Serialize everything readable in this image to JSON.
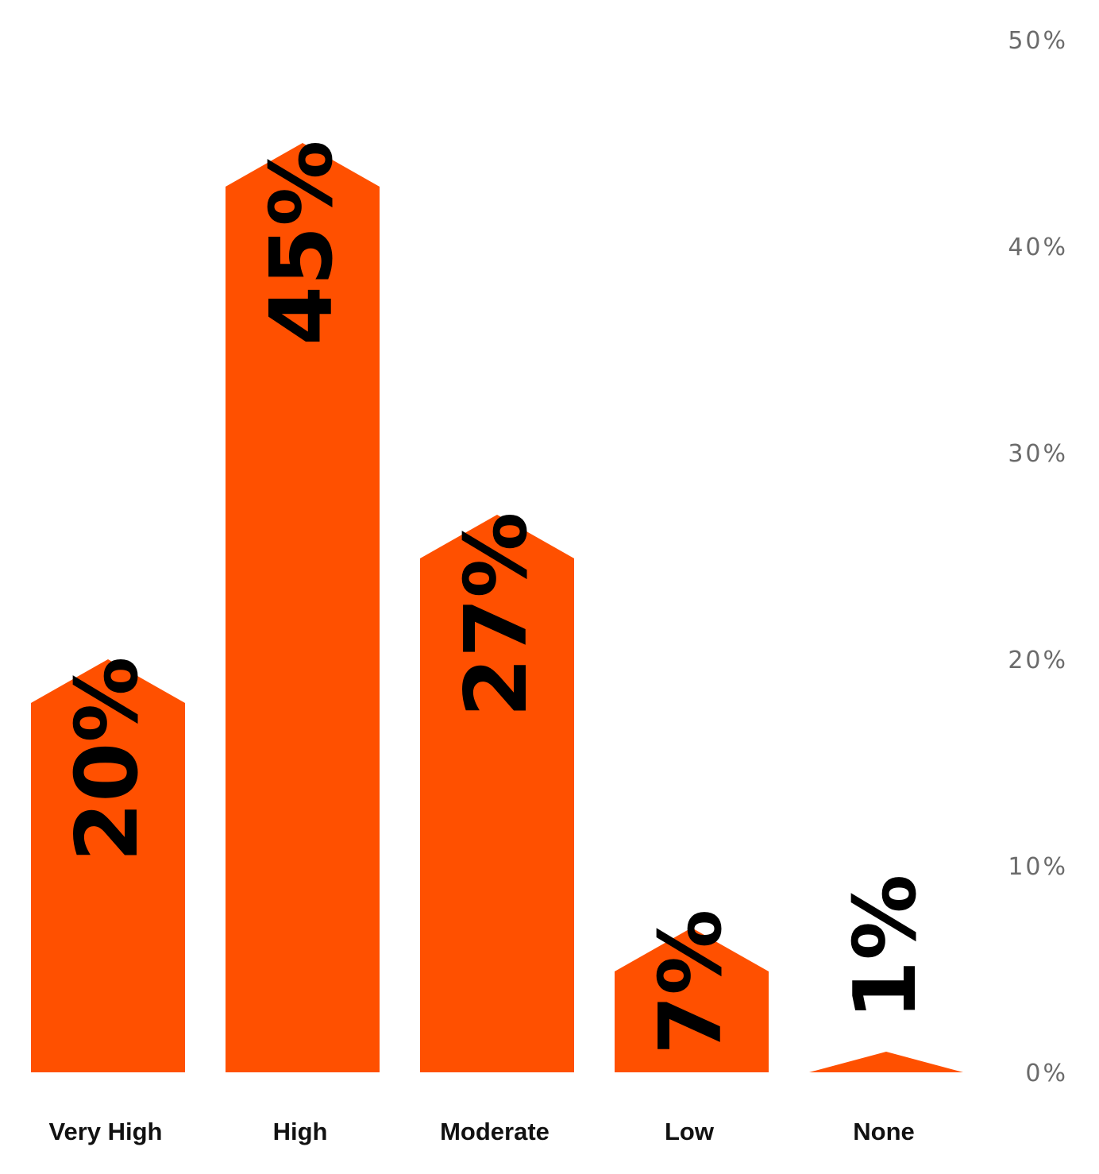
{
  "chart_data": {
    "type": "bar",
    "categories": [
      "Very High",
      "High",
      "Moderate",
      "Low",
      "None"
    ],
    "values": [
      20,
      45,
      27,
      7,
      1
    ],
    "value_labels": [
      "20%",
      "45%",
      "27%",
      "7%",
      "1%"
    ],
    "yticks": [
      "0%",
      "10%",
      "20%",
      "30%",
      "40%",
      "50%"
    ],
    "ylim": [
      0,
      50
    ],
    "y_axis_position": "right",
    "grid": false,
    "legend": "none",
    "bar_color": "#ff5000",
    "label_color": "#000000",
    "title": "",
    "xlabel": "",
    "ylabel": ""
  }
}
